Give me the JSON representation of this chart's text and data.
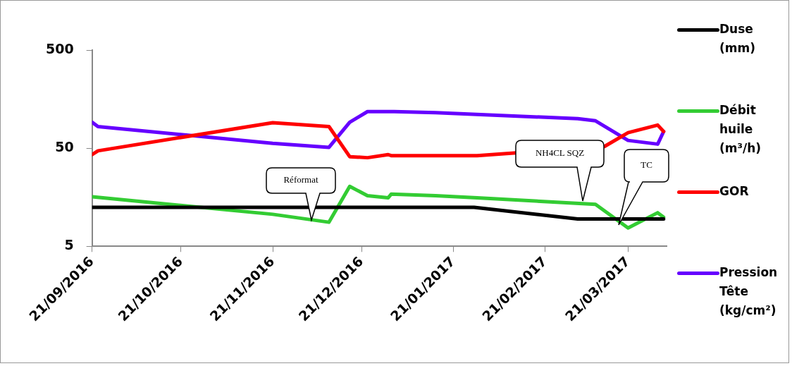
{
  "chart_data": {
    "type": "line",
    "log": "y",
    "legend": "right",
    "grid": false,
    "marker": "none",
    "line_style": "solid",
    "xlim": [
      "2016-09-21",
      "2017-04-03"
    ],
    "xticks": [
      {
        "value": "2016-09-21",
        "label": "21/09/2016"
      },
      {
        "value": "2016-10-21",
        "label": "21/10/2016"
      },
      {
        "value": "2016-11-21",
        "label": "21/11/2016"
      },
      {
        "value": "2016-12-21",
        "label": "21/12/2016"
      },
      {
        "value": "2017-01-21",
        "label": "21/01/2017"
      },
      {
        "value": "2017-02-21",
        "label": "21/02/2017"
      },
      {
        "value": "2017-03-21",
        "label": "21/03/2017"
      }
    ],
    "ylim": [
      5,
      500
    ],
    "yticks": [
      5,
      50,
      500
    ],
    "series": [
      {
        "name": "Duse (mm)",
        "color": "#000000",
        "x": [
          "2016-09-21",
          "2017-01-28",
          "2017-03-04",
          "2017-04-02"
        ],
        "values": [
          12.5,
          12.5,
          9.5,
          9.5
        ]
      },
      {
        "name": "Débit huile (m³/h)",
        "color": "#33cc33",
        "x": [
          "2016-09-21",
          "2016-11-21",
          "2016-12-10",
          "2016-12-17",
          "2016-12-23",
          "2016-12-30",
          "2016-12-31",
          "2017-01-15",
          "2017-01-29",
          "2017-03-10",
          "2017-03-21",
          "2017-03-31",
          "2017-04-02"
        ],
        "values": [
          16,
          10.6,
          8.8,
          20.4,
          16.4,
          15.6,
          17,
          16.4,
          15.6,
          13.4,
          7.7,
          11,
          9.9
        ]
      },
      {
        "name": "GOR",
        "color": "#ff0000",
        "x": [
          "2016-09-21",
          "2016-09-23",
          "2016-11-21",
          "2016-12-10",
          "2016-12-17",
          "2016-12-23",
          "2016-12-30",
          "2016-12-31",
          "2017-01-15",
          "2017-01-29",
          "2017-02-18",
          "2017-03-13",
          "2017-03-21",
          "2017-03-31",
          "2017-04-02"
        ],
        "values": [
          43,
          47,
          91,
          83,
          41,
          40,
          43,
          42,
          42,
          42,
          null,
          52,
          72,
          86,
          74
        ]
      },
      {
        "name": "Pression Tête (kg/cm²)",
        "color": "#6600ff",
        "x": [
          "2016-09-21",
          "2016-09-23",
          "2016-11-21",
          "2016-12-10",
          "2016-12-17",
          "2016-12-23",
          "2017-01-01",
          "2017-01-15",
          "2017-03-04",
          "2017-03-10",
          "2017-03-21",
          "2017-03-31",
          "2017-04-02"
        ],
        "values": [
          92,
          83,
          56,
          51,
          92,
          118,
          118,
          115,
          100,
          95,
          60,
          55,
          74
        ]
      }
    ],
    "annotations": [
      "Réformat",
      "NH4CL SQZ",
      "TC"
    ]
  }
}
